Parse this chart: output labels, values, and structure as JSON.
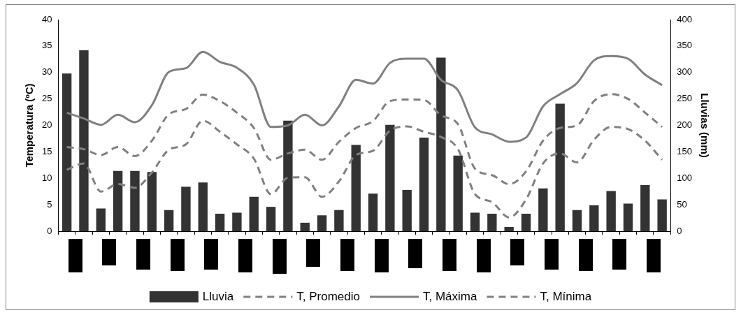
{
  "chart_data": {
    "type": "bar",
    "categories": [
      null,
      null,
      null,
      null,
      null,
      null,
      null,
      null,
      null,
      null,
      null,
      null,
      null,
      null,
      null,
      null,
      null,
      null,
      null,
      null,
      null,
      null,
      null,
      null,
      null,
      null,
      null,
      null,
      null,
      null,
      null,
      null,
      null,
      null,
      null,
      null
    ],
    "ylabel": "Temperatura (ºC)",
    "y2label": "Lluvias (mm)",
    "ylim": [
      0,
      40
    ],
    "yticks": [
      0,
      5,
      10,
      15,
      20,
      25,
      30,
      35,
      40
    ],
    "y2lim": [
      0,
      400
    ],
    "y2ticks": [
      0,
      50,
      100,
      150,
      200,
      250,
      300,
      350,
      400
    ],
    "grid": false,
    "legend": "bottom",
    "marker": "none",
    "series": [
      {
        "name": "Lluvia",
        "axis": "y2",
        "color": "#333333",
        "values": [
          298,
          342,
          43,
          114,
          114,
          112,
          40,
          84,
          92,
          33,
          35,
          65,
          46,
          209,
          16,
          30,
          40,
          163,
          71,
          201,
          78,
          177,
          328,
          143,
          35,
          33,
          8,
          33,
          81,
          241,
          40,
          49,
          76,
          52,
          87,
          60
        ]
      },
      {
        "name": "T, Promedio",
        "type": "line",
        "line_style": "dashed",
        "color": "#808080",
        "values": [
          15.9,
          15.5,
          14.4,
          15.9,
          14.2,
          17.1,
          22.1,
          23.1,
          25.8,
          24.6,
          22.4,
          19.5,
          13.5,
          14.7,
          15.4,
          13.5,
          16.9,
          19.5,
          20.8,
          24.6,
          24.9,
          24.8,
          21.9,
          20.2,
          11.8,
          10.6,
          8.9,
          11.3,
          17.1,
          19.5,
          20.0,
          24.6,
          25.9,
          25.0,
          22.4,
          19.7
        ]
      },
      {
        "name": "T, Máxima",
        "type": "line",
        "line_style": "solid",
        "color": "#808080",
        "values": [
          22.4,
          21.3,
          20.1,
          22.0,
          20.6,
          23.8,
          30.1,
          30.8,
          33.9,
          32.0,
          30.9,
          27.7,
          19.7,
          20.0,
          22.0,
          20.0,
          23.6,
          28.6,
          27.9,
          31.8,
          32.6,
          32.6,
          28.6,
          26.6,
          19.6,
          18.3,
          16.9,
          17.7,
          23.6,
          25.9,
          28.0,
          32.3,
          33.1,
          32.6,
          29.6,
          27.6
        ]
      },
      {
        "name": "T, Mínima",
        "type": "line",
        "line_style": "dashed",
        "color": "#808080",
        "values": [
          11.6,
          12.8,
          7.5,
          8.9,
          8.2,
          11.1,
          15.4,
          16.4,
          20.9,
          18.8,
          16.4,
          13.7,
          7.0,
          10.1,
          10.2,
          6.5,
          9.4,
          14.4,
          15.2,
          19.0,
          19.8,
          18.8,
          17.8,
          15.5,
          7.0,
          5.5,
          2.6,
          6.0,
          12.8,
          14.7,
          13.0,
          17.3,
          19.7,
          19.3,
          17.1,
          13.5
        ]
      }
    ]
  }
}
